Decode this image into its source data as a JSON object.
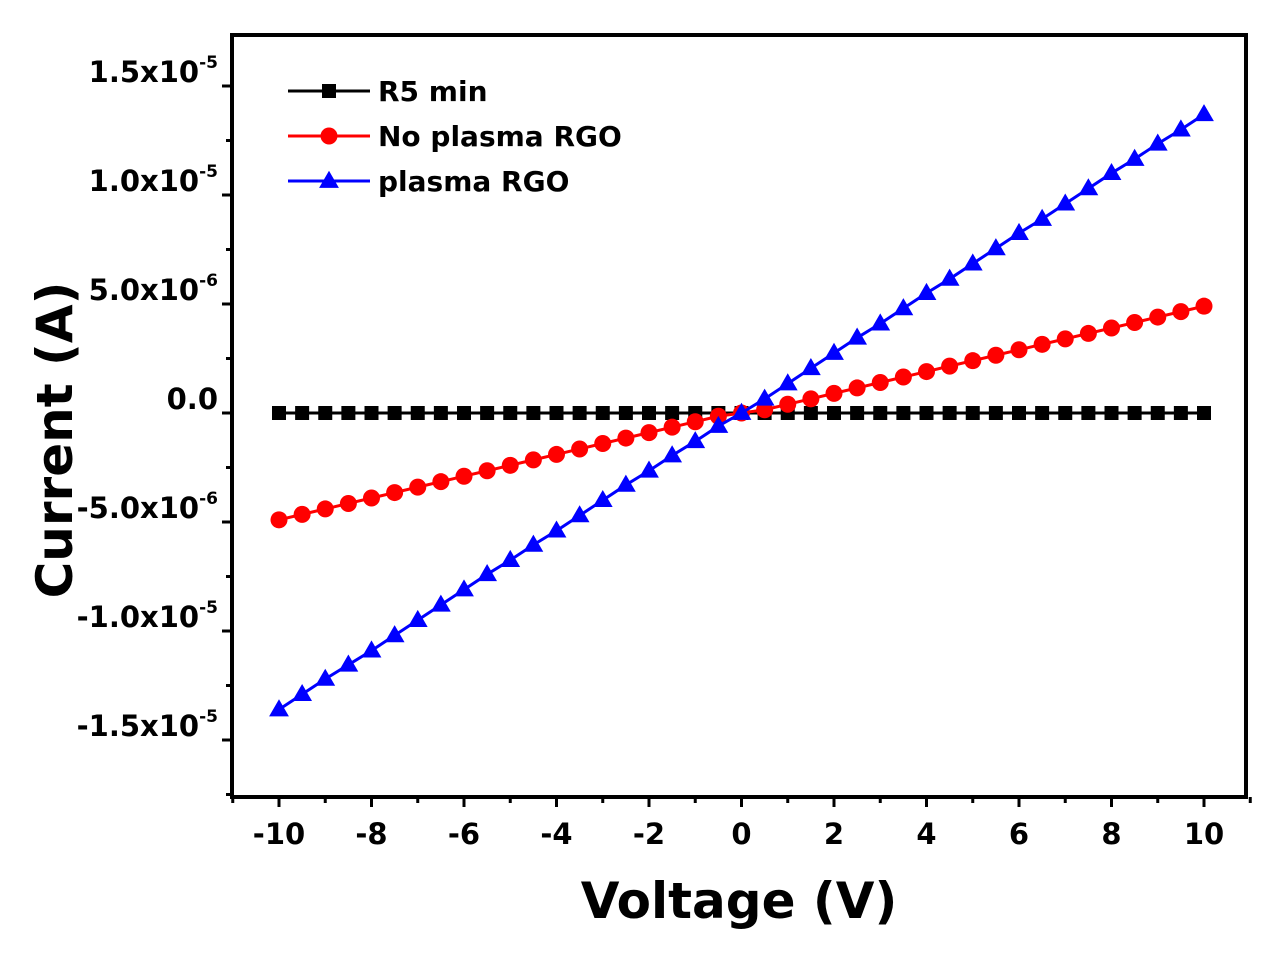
{
  "chart_data": {
    "type": "line",
    "title": "",
    "xlabel": "Voltage (V)",
    "ylabel": "Current (A)",
    "xlim": [
      -11,
      11
    ],
    "ylim": [
      -1.75e-05,
      1.75e-05
    ],
    "grid": false,
    "legend_position": "top-left",
    "x_ticks": [
      {
        "value": -10,
        "label": "-10"
      },
      {
        "value": -8,
        "label": "-8"
      },
      {
        "value": -6,
        "label": "-6"
      },
      {
        "value": -4,
        "label": "-4"
      },
      {
        "value": -2,
        "label": "-2"
      },
      {
        "value": 0,
        "label": "0"
      },
      {
        "value": 2,
        "label": "2"
      },
      {
        "value": 4,
        "label": "4"
      },
      {
        "value": 6,
        "label": "6"
      },
      {
        "value": 8,
        "label": "8"
      },
      {
        "value": 10,
        "label": "10"
      }
    ],
    "y_ticks": [
      {
        "value": 1.5e-05,
        "mantissa": "1.5x10",
        "exp": "-5"
      },
      {
        "value": 1e-05,
        "mantissa": "1.0x10",
        "exp": "-5"
      },
      {
        "value": 5e-06,
        "mantissa": "5.0x10",
        "exp": "-6"
      },
      {
        "value": 0,
        "mantissa": "0.0",
        "exp": ""
      },
      {
        "value": -5e-06,
        "mantissa": "-5.0x10",
        "exp": "-6"
      },
      {
        "value": -1e-05,
        "mantissa": "-1.0x10",
        "exp": "-5"
      },
      {
        "value": -1.5e-05,
        "mantissa": "-1.5x10",
        "exp": "-5"
      }
    ],
    "x": [
      -10,
      -9.5,
      -9,
      -8.5,
      -8,
      -7.5,
      -7,
      -6.5,
      -6,
      -5.5,
      -5,
      -4.5,
      -4,
      -3.5,
      -3,
      -2.5,
      -2,
      -1.5,
      -1,
      -0.5,
      0,
      0.5,
      1,
      1.5,
      2,
      2.5,
      3,
      3.5,
      4,
      4.5,
      5,
      5.5,
      6,
      6.5,
      7,
      7.5,
      8,
      8.5,
      9,
      9.5,
      10
    ],
    "series": [
      {
        "name": "R5 min",
        "color": "#000000",
        "marker": "square",
        "values": [
          0,
          0,
          0,
          0,
          0,
          0,
          0,
          0,
          0,
          0,
          0,
          0,
          0,
          0,
          0,
          0,
          0,
          0,
          0,
          0,
          0,
          0,
          0,
          0,
          0,
          0,
          0,
          0,
          0,
          0,
          0,
          0,
          0,
          0,
          0,
          0,
          0,
          0,
          0,
          0,
          0
        ]
      },
      {
        "name": "No plasma RGO",
        "color": "#ff0000",
        "marker": "circle",
        "values": [
          -4.9e-06,
          -4.65e-06,
          -4.4e-06,
          -4.15e-06,
          -3.9e-06,
          -3.65e-06,
          -3.4e-06,
          -3.15e-06,
          -2.9e-06,
          -2.65e-06,
          -2.4e-06,
          -2.15e-06,
          -1.9e-06,
          -1.65e-06,
          -1.4e-06,
          -1.15e-06,
          -9e-07,
          -6.5e-07,
          -4e-07,
          -1.5e-07,
          0,
          1.5e-07,
          4e-07,
          6.5e-07,
          9e-07,
          1.15e-06,
          1.4e-06,
          1.65e-06,
          1.9e-06,
          2.15e-06,
          2.4e-06,
          2.65e-06,
          2.9e-06,
          3.15e-06,
          3.4e-06,
          3.65e-06,
          3.9e-06,
          4.15e-06,
          4.4e-06,
          4.65e-06,
          4.9e-06
        ]
      },
      {
        "name": "plasma RGO",
        "color": "#0000ff",
        "marker": "triangle",
        "values": [
          -1.36e-05,
          -1.29e-05,
          -1.22e-05,
          -1.155e-05,
          -1.09e-05,
          -1.02e-05,
          -9.5e-06,
          -8.8e-06,
          -8.1e-06,
          -7.4e-06,
          -6.75e-06,
          -6.05e-06,
          -5.4e-06,
          -4.7e-06,
          -4e-06,
          -3.3e-06,
          -2.65e-06,
          -1.95e-06,
          -1.3e-06,
          -6e-07,
          0,
          6.5e-07,
          1.35e-06,
          2.05e-06,
          2.75e-06,
          3.45e-06,
          4.1e-06,
          4.8e-06,
          5.5e-06,
          6.15e-06,
          6.85e-06,
          7.55e-06,
          8.25e-06,
          8.9e-06,
          9.6e-06,
          1.03e-05,
          1.1e-05,
          1.165e-05,
          1.235e-05,
          1.3e-05,
          1.37e-05
        ]
      }
    ]
  }
}
